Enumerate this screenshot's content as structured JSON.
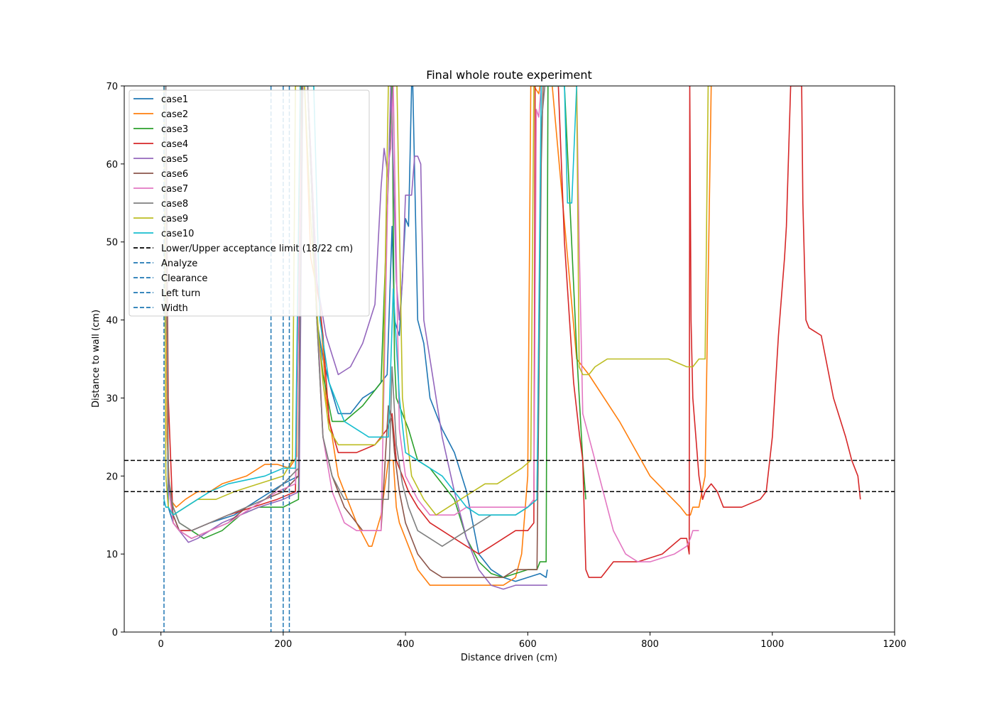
{
  "chart_data": {
    "type": "line",
    "title": "Final whole route experiment",
    "xlabel": "Distance driven (cm)",
    "ylabel": "Distance to wall (cm)",
    "xlim": [
      -60,
      1200
    ],
    "ylim": [
      0,
      70
    ],
    "xticks": [
      0,
      200,
      400,
      600,
      800,
      1000,
      1200
    ],
    "yticks": [
      0,
      10,
      20,
      30,
      40,
      50,
      60,
      70
    ],
    "grid": false,
    "legend_position": "upper-left",
    "series": [
      {
        "name": "case1",
        "color": "#1f77b4",
        "x": [
          8,
          9,
          12,
          20,
          30,
          50,
          80,
          120,
          160,
          200,
          225,
          232,
          240,
          255,
          265,
          275,
          290,
          310,
          330,
          350,
          370,
          378,
          382,
          390,
          400,
          405,
          410,
          412,
          420,
          430,
          440,
          460,
          480,
          500,
          520,
          540,
          560,
          580,
          600,
          620,
          630,
          632
        ],
        "y": [
          70,
          40,
          16,
          14,
          13,
          13,
          14,
          15,
          17,
          19,
          20,
          70,
          70,
          40,
          35,
          32,
          28,
          28,
          30,
          31,
          33,
          52,
          40,
          38,
          53,
          52,
          70,
          70,
          40,
          37,
          30,
          26,
          23,
          18,
          10,
          8,
          7,
          6.5,
          7,
          7.5,
          7,
          8
        ]
      },
      {
        "name": "case2",
        "color": "#ff7f0e",
        "x": [
          8,
          10,
          15,
          25,
          40,
          60,
          80,
          100,
          140,
          170,
          190,
          210,
          222,
          228,
          235,
          245,
          260,
          270,
          290,
          320,
          340,
          345,
          360,
          372,
          380,
          385,
          390,
          400,
          420,
          440,
          460,
          480,
          500,
          520,
          540,
          560,
          580,
          590,
          600,
          605,
          610,
          618,
          620,
          640,
          680,
          700,
          750,
          800,
          850,
          860,
          866,
          870,
          880,
          890,
          900
        ],
        "y": [
          70,
          25,
          17,
          16,
          17,
          18,
          18,
          19,
          20,
          21.5,
          21.5,
          21,
          22.5,
          70,
          70,
          48,
          42,
          30,
          20,
          14,
          11,
          11,
          15,
          22,
          22,
          16,
          14,
          12,
          8,
          6,
          6,
          6,
          6,
          6,
          6,
          6,
          7,
          10,
          20,
          70,
          70,
          69,
          70,
          70,
          35,
          33,
          27,
          20,
          16,
          15,
          15,
          16,
          16,
          20,
          70
        ]
      },
      {
        "name": "case3",
        "color": "#2ca02c",
        "x": [
          8,
          12,
          20,
          30,
          50,
          70,
          100,
          130,
          160,
          200,
          225,
          232,
          240,
          255,
          265,
          280,
          300,
          330,
          360,
          372,
          378,
          382,
          385,
          395,
          405,
          420,
          440,
          460,
          480,
          500,
          520,
          540,
          560,
          580,
          600,
          615,
          620,
          630,
          633,
          650,
          660,
          680,
          690,
          695
        ],
        "y": [
          70,
          20,
          16,
          14,
          13,
          12,
          13,
          15,
          16,
          16,
          17,
          70,
          70,
          40,
          33,
          27,
          27,
          29,
          32,
          58,
          70,
          35,
          30,
          28,
          26,
          22,
          21,
          19,
          17,
          12,
          9,
          7.5,
          7,
          7.5,
          8,
          8,
          9,
          9,
          70,
          70,
          70,
          36,
          22,
          17
        ]
      },
      {
        "name": "case4",
        "color": "#d62728",
        "x": [
          8,
          12,
          20,
          30,
          50,
          80,
          110,
          150,
          190,
          220,
          232,
          240,
          255,
          265,
          275,
          290,
          320,
          350,
          370,
          378,
          385,
          395,
          405,
          420,
          440,
          460,
          480,
          500,
          520,
          540,
          560,
          580,
          600,
          610,
          612,
          618,
          625,
          650,
          660,
          670,
          675,
          685,
          690,
          695,
          700,
          720,
          740,
          780,
          820,
          850,
          860,
          864,
          865,
          867,
          870,
          880,
          886,
          890,
          900,
          910,
          920,
          950,
          980,
          990,
          1000,
          1010,
          1020,
          1023,
          1030,
          1040,
          1048,
          1050,
          1055,
          1060,
          1080,
          1100,
          1120,
          1130,
          1140,
          1144
        ],
        "y": [
          70,
          30,
          14,
          13,
          13,
          14,
          15,
          16,
          17,
          18,
          70,
          70,
          45,
          38,
          27,
          23,
          23,
          24,
          26,
          28,
          22,
          20,
          18,
          16,
          14,
          13,
          12,
          11,
          10,
          11,
          12,
          13,
          13,
          14,
          70,
          70,
          70,
          70,
          50,
          38,
          32,
          25,
          22,
          8,
          7,
          7,
          9,
          9,
          10,
          12,
          12,
          10,
          70,
          40,
          30,
          20,
          17,
          18,
          19,
          18,
          16,
          16,
          17,
          18,
          25,
          38,
          48,
          52,
          70,
          70,
          70,
          55,
          40,
          39,
          38,
          30,
          25,
          22,
          20,
          17
        ]
      },
      {
        "name": "case5",
        "color": "#9467bd",
        "x": [
          8,
          12,
          20,
          30,
          45,
          60,
          80,
          100,
          130,
          160,
          200,
          226,
          232,
          240,
          255,
          270,
          290,
          310,
          330,
          350,
          360,
          365,
          372,
          376,
          380,
          385,
          390,
          395,
          400,
          410,
          415,
          420,
          425,
          430,
          440,
          460,
          480,
          500,
          520,
          540,
          560,
          580,
          600,
          620,
          630,
          632
        ],
        "y": [
          70,
          20,
          15,
          13,
          11.5,
          12,
          13,
          14,
          15,
          16,
          17,
          18,
          70,
          70,
          45,
          38,
          33,
          34,
          37,
          42,
          57,
          62,
          58,
          70,
          60,
          45,
          40,
          45,
          56,
          56,
          61,
          61,
          60,
          40,
          35,
          25,
          18,
          12,
          8,
          6,
          5.5,
          6,
          6,
          6,
          6,
          6
        ]
      },
      {
        "name": "case6",
        "color": "#8c564b",
        "x": [
          8,
          12,
          20,
          30,
          50,
          80,
          110,
          140,
          170,
          200,
          225,
          230,
          235,
          240,
          255,
          265,
          280,
          300,
          330,
          360,
          372,
          378,
          382,
          390,
          400,
          420,
          440,
          460,
          480,
          500,
          520,
          540,
          560,
          580,
          600,
          615,
          622,
          625,
          628,
          632
        ],
        "y": [
          70,
          19,
          15,
          13,
          12,
          13,
          14,
          16,
          17,
          18,
          20,
          70,
          70,
          70,
          40,
          25,
          20,
          16,
          13,
          13,
          29,
          27,
          23,
          18,
          14,
          10,
          8,
          7,
          7,
          7,
          7,
          7,
          7,
          8,
          8,
          8,
          60,
          70,
          70,
          70
        ]
      },
      {
        "name": "case7",
        "color": "#e377c2",
        "x": [
          8,
          12,
          20,
          30,
          50,
          80,
          110,
          150,
          190,
          220,
          232,
          240,
          255,
          265,
          280,
          300,
          320,
          340,
          350,
          360,
          372,
          376,
          380,
          390,
          400,
          420,
          440,
          460,
          480,
          500,
          520,
          540,
          560,
          580,
          600,
          610,
          614,
          618,
          622,
          680,
          684,
          690,
          700,
          720,
          740,
          760,
          780,
          800,
          820,
          840,
          860,
          866,
          870,
          875,
          880
        ],
        "y": [
          70,
          19,
          14,
          13,
          12,
          13,
          14,
          16,
          18,
          19,
          70,
          70,
          42,
          25,
          18,
          14,
          13,
          13,
          13,
          13,
          60,
          62,
          70,
          26,
          20,
          17,
          15,
          15,
          15,
          16,
          16,
          16,
          16,
          16,
          16,
          17,
          67,
          66,
          70,
          70,
          50,
          28,
          25,
          19,
          13,
          10,
          9,
          9,
          9.5,
          10,
          11,
          12,
          13,
          13,
          13
        ]
      },
      {
        "name": "case8",
        "color": "#7f7f7f",
        "x": [
          8,
          12,
          20,
          30,
          50,
          80,
          110,
          140,
          170,
          200,
          225,
          232,
          240,
          255,
          265,
          280,
          300,
          320,
          340,
          360,
          372,
          378,
          385,
          395,
          405,
          420,
          440,
          460,
          480,
          500,
          520,
          540,
          560,
          580,
          600,
          615,
          622,
          628,
          632
        ],
        "y": [
          70,
          19,
          16,
          14,
          13,
          14,
          15,
          16,
          17,
          19,
          21,
          70,
          70,
          40,
          25,
          20,
          17,
          17,
          17,
          17,
          17,
          34,
          24,
          19,
          16,
          13,
          12,
          11,
          12,
          13,
          14,
          15,
          15,
          15,
          16,
          17,
          65,
          70,
          70
        ]
      },
      {
        "name": "case9",
        "color": "#bcbd22",
        "x": [
          5,
          8,
          12,
          20,
          40,
          60,
          90,
          120,
          160,
          200,
          215,
          220,
          228,
          235,
          245,
          258,
          265,
          275,
          290,
          320,
          350,
          362,
          372,
          380,
          386,
          395,
          410,
          430,
          450,
          470,
          490,
          510,
          530,
          550,
          570,
          590,
          605,
          610,
          618,
          680,
          684,
          690,
          695,
          700,
          710,
          730,
          760,
          800,
          830,
          860,
          870,
          880,
          885,
          890,
          895,
          900
        ],
        "y": [
          70,
          20,
          16,
          15,
          16,
          17,
          17,
          18,
          19,
          20,
          22,
          70,
          70,
          70,
          53,
          38,
          32,
          26,
          24,
          24,
          24,
          25,
          70,
          70,
          70,
          30,
          20,
          17,
          15,
          16,
          17,
          18,
          19,
          19,
          20,
          21,
          22,
          70,
          70,
          70,
          34,
          33,
          33,
          33,
          34,
          35,
          35,
          35,
          35,
          34,
          34,
          35,
          35,
          35,
          70,
          70
        ]
      },
      {
        "name": "case10",
        "color": "#17becf",
        "x": [
          5,
          8,
          12,
          20,
          40,
          60,
          80,
          110,
          140,
          170,
          200,
          220,
          228,
          235,
          250,
          260,
          275,
          300,
          320,
          340,
          360,
          372,
          380,
          390,
          400,
          420,
          440,
          460,
          480,
          500,
          520,
          540,
          560,
          580,
          600,
          615,
          622,
          628,
          660,
          665,
          672,
          680
        ],
        "y": [
          17,
          16,
          16,
          15,
          16,
          17,
          18,
          19,
          19.5,
          20,
          21,
          21,
          70,
          70,
          70,
          40,
          32,
          27,
          26,
          25,
          25,
          25,
          44,
          30,
          23,
          22,
          21,
          20,
          18,
          16,
          15,
          15,
          15,
          15,
          16,
          17,
          70,
          70,
          70,
          55,
          55,
          70
        ]
      }
    ],
    "reference_lines": [
      {
        "name": "Lower/Upper acceptance limit (18/22 cm)",
        "orientation": "horizontal",
        "values": [
          18,
          22
        ],
        "color": "#000000"
      },
      {
        "name": "Analyze",
        "orientation": "vertical",
        "values": [
          5
        ],
        "color": "#1f77b4"
      },
      {
        "name": "Clearance",
        "orientation": "vertical",
        "values": [
          180
        ],
        "color": "#1f77b4"
      },
      {
        "name": "Left turn",
        "orientation": "vertical",
        "values": [
          200
        ],
        "color": "#1f77b4"
      },
      {
        "name": "Width",
        "orientation": "vertical",
        "values": [
          210
        ],
        "color": "#1f77b4"
      }
    ],
    "legend": [
      "case1",
      "case2",
      "case3",
      "case4",
      "case5",
      "case6",
      "case7",
      "case8",
      "case9",
      "case10",
      "Lower/Upper acceptance limit (18/22 cm)",
      "Analyze",
      "Clearance",
      "Left turn",
      "Width"
    ]
  }
}
